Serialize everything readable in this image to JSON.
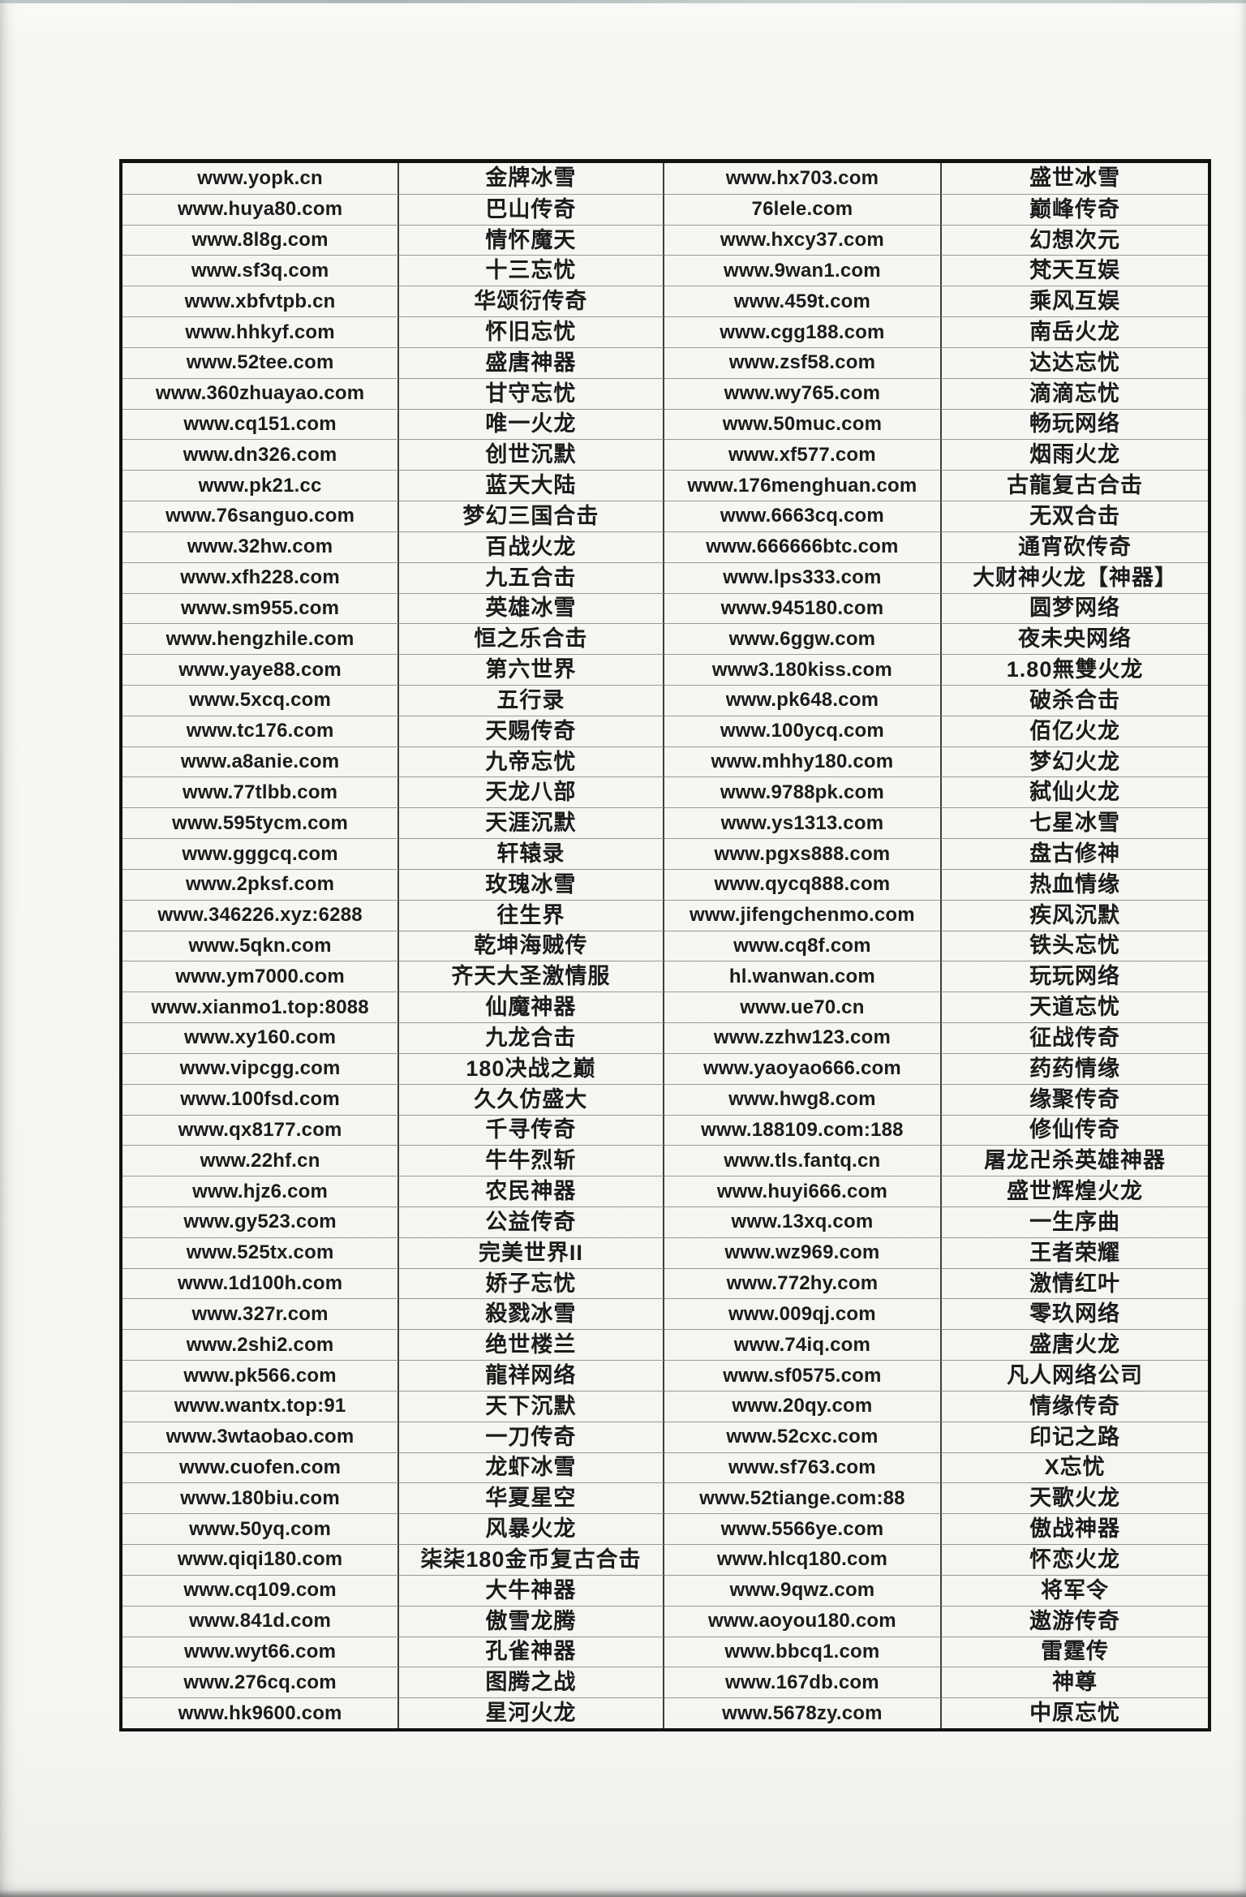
{
  "document": {
    "kind": "scanned game-website list",
    "columns": [
      "site-url",
      "game-name",
      "site-url",
      "game-name"
    ]
  },
  "colors": {
    "paper": "#f5f5f2",
    "ink": "#1c1c1c",
    "border": "#121212",
    "colline": "#3d3d3d",
    "rowline": "rgba(60,60,60,0.5)"
  },
  "table": {
    "rows": [
      [
        "www.yopk.cn",
        "金牌冰雪",
        "www.hx703.com",
        "盛世冰雪"
      ],
      [
        "www.huya80.com",
        "巴山传奇",
        "76lele.com",
        "巅峰传奇"
      ],
      [
        "www.8l8g.com",
        "情怀魔天",
        "www.hxcy37.com",
        "幻想次元"
      ],
      [
        "www.sf3q.com",
        "十三忘忧",
        "www.9wan1.com",
        "梵天互娱"
      ],
      [
        "www.xbfvtpb.cn",
        "华颂衍传奇",
        "www.459t.com",
        "乘风互娱"
      ],
      [
        "www.hhkyf.com",
        "怀旧忘忧",
        "www.cgg188.com",
        "南岳火龙"
      ],
      [
        "www.52tee.com",
        "盛唐神器",
        "www.zsf58.com",
        "达达忘忧"
      ],
      [
        "www.360zhuayao.com",
        "甘守忘忧",
        "www.wy765.com",
        "滴滴忘忧"
      ],
      [
        "www.cq151.com",
        "唯一火龙",
        "www.50muc.com",
        "畅玩网络"
      ],
      [
        "www.dn326.com",
        "创世沉默",
        "www.xf577.com",
        "烟雨火龙"
      ],
      [
        "www.pk21.cc",
        "蓝天大陆",
        "www.176menghuan.com",
        "古龍复古合击"
      ],
      [
        "www.76sanguo.com",
        "梦幻三国合击",
        "www.6663cq.com",
        "无双合击"
      ],
      [
        "www.32hw.com",
        "百战火龙",
        "www.666666btc.com",
        "通宵砍传奇"
      ],
      [
        "www.xfh228.com",
        "九五合击",
        "www.lps333.com",
        "大财神火龙【神器】"
      ],
      [
        "www.sm955.com",
        "英雄冰雪",
        "www.945180.com",
        "圆梦网络"
      ],
      [
        "www.hengzhile.com",
        "恒之乐合击",
        "www.6ggw.com",
        "夜未央网络"
      ],
      [
        "www.yaye88.com",
        "第六世界",
        "www3.180kiss.com",
        "1.80無雙火龙"
      ],
      [
        "www.5xcq.com",
        "五行录",
        "www.pk648.com",
        "破杀合击"
      ],
      [
        "www.tc176.com",
        "天赐传奇",
        "www.100ycq.com",
        "佰亿火龙"
      ],
      [
        "www.a8anie.com",
        "九帝忘忧",
        "www.mhhy180.com",
        "梦幻火龙"
      ],
      [
        "www.77tlbb.com",
        "天龙八部",
        "www.9788pk.com",
        "弑仙火龙"
      ],
      [
        "www.595tycm.com",
        "天涯沉默",
        "www.ys1313.com",
        "七星冰雪"
      ],
      [
        "www.gggcq.com",
        "轩辕录",
        "www.pgxs888.com",
        "盘古修神"
      ],
      [
        "www.2pksf.com",
        "玫瑰冰雪",
        "www.qycq888.com",
        "热血情缘"
      ],
      [
        "www.346226.xyz:6288",
        "往生界",
        "www.jifengchenmo.com",
        "疾风沉默"
      ],
      [
        "www.5qkn.com",
        "乾坤海贼传",
        "www.cq8f.com",
        "铁头忘忧"
      ],
      [
        "www.ym7000.com",
        "齐天大圣激情服",
        "hl.wanwan.com",
        "玩玩网络"
      ],
      [
        "www.xianmo1.top:8088",
        "仙魔神器",
        "www.ue70.cn",
        "天道忘忧"
      ],
      [
        "www.xy160.com",
        "九龙合击",
        "www.zzhw123.com",
        "征战传奇"
      ],
      [
        "www.vipcgg.com",
        "180决战之巅",
        "www.yaoyao666.com",
        "药药情缘"
      ],
      [
        "www.100fsd.com",
        "久久仿盛大",
        "www.hwg8.com",
        "缘聚传奇"
      ],
      [
        "www.qx8177.com",
        "千寻传奇",
        "www.188109.com:188",
        "修仙传奇"
      ],
      [
        "www.22hf.cn",
        "牛牛烈斩",
        "www.tls.fantq.cn",
        "屠龙卍杀英雄神器"
      ],
      [
        "www.hjz6.com",
        "农民神器",
        "www.huyi666.com",
        "盛世辉煌火龙"
      ],
      [
        "www.gy523.com",
        "公益传奇",
        "www.13xq.com",
        "一生序曲"
      ],
      [
        "www.525tx.com",
        "完美世界II",
        "www.wz969.com",
        "王者荣耀"
      ],
      [
        "www.1d100h.com",
        "娇子忘忧",
        "www.772hy.com",
        "激情红叶"
      ],
      [
        "www.327r.com",
        "殺戮冰雪",
        "www.009qj.com",
        "零玖网络"
      ],
      [
        "www.2shi2.com",
        "绝世楼兰",
        "www.74iq.com",
        "盛唐火龙"
      ],
      [
        "www.pk566.com",
        "龍祥网络",
        "www.sf0575.com",
        "凡人网络公司"
      ],
      [
        "www.wantx.top:91",
        "天下沉默",
        "www.20qy.com",
        "情缘传奇"
      ],
      [
        "www.3wtaobao.com",
        "一刀传奇",
        "www.52cxc.com",
        "印记之路"
      ],
      [
        "www.cuofen.com",
        "龙虾冰雪",
        "www.sf763.com",
        "X忘忧"
      ],
      [
        "www.180biu.com",
        "华夏星空",
        "www.52tiange.com:88",
        "天歌火龙"
      ],
      [
        "www.50yq.com",
        "风暴火龙",
        "www.5566ye.com",
        "傲战神器"
      ],
      [
        "www.qiqi180.com",
        "柒柒180金币复古合击",
        "www.hlcq180.com",
        "怀恋火龙"
      ],
      [
        "www.cq109.com",
        "大牛神器",
        "www.9qwz.com",
        "将军令"
      ],
      [
        "www.841d.com",
        "傲雪龙腾",
        "www.aoyou180.com",
        "遨游传奇"
      ],
      [
        "www.wyt66.com",
        "孔雀神器",
        "www.bbcq1.com",
        "雷霆传"
      ],
      [
        "www.276cq.com",
        "图腾之战",
        "www.167db.com",
        "神尊"
      ],
      [
        "www.hk9600.com",
        "星河火龙",
        "www.5678zy.com",
        "中原忘忧"
      ]
    ]
  }
}
